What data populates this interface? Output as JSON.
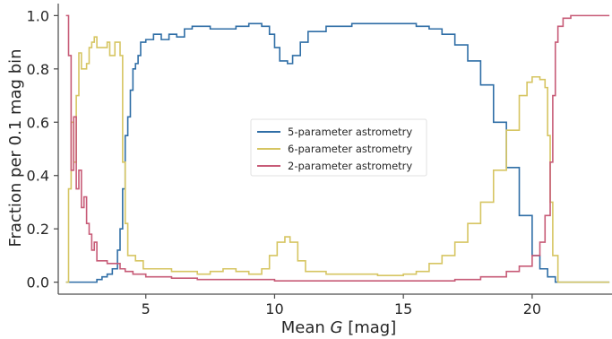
{
  "chart_data": {
    "type": "line",
    "step": true,
    "xlabel_prefix": "Mean ",
    "xlabel_var": "G",
    "xlabel_suffix": " [mag]",
    "ylabel": "Fraction per 0.1 mag bin",
    "xlim": [
      1.6,
      23.1
    ],
    "ylim": [
      -0.045,
      1.045
    ],
    "xticks": [
      5,
      10,
      15,
      20
    ],
    "yticks": [
      0.0,
      0.2,
      0.4,
      0.6,
      0.8,
      1.0
    ],
    "xtick_labels": [
      "5",
      "10",
      "15",
      "20"
    ],
    "ytick_labels": [
      "0.0",
      "0.2",
      "0.4",
      "0.6",
      "0.8",
      "1.0"
    ],
    "grid": false,
    "legend_position": "center",
    "series": [
      {
        "name": "5-parameter astrometry",
        "color": "#2f6ea6",
        "points": [
          [
            1.9,
            0.0
          ],
          [
            2.9,
            0.0
          ],
          [
            3.1,
            0.01
          ],
          [
            3.3,
            0.02
          ],
          [
            3.5,
            0.03
          ],
          [
            3.7,
            0.05
          ],
          [
            3.9,
            0.12
          ],
          [
            4.0,
            0.2
          ],
          [
            4.1,
            0.35
          ],
          [
            4.2,
            0.55
          ],
          [
            4.3,
            0.62
          ],
          [
            4.4,
            0.72
          ],
          [
            4.5,
            0.8
          ],
          [
            4.6,
            0.82
          ],
          [
            4.7,
            0.85
          ],
          [
            4.8,
            0.9
          ],
          [
            5.0,
            0.91
          ],
          [
            5.3,
            0.93
          ],
          [
            5.6,
            0.91
          ],
          [
            5.9,
            0.93
          ],
          [
            6.2,
            0.92
          ],
          [
            6.5,
            0.95
          ],
          [
            6.8,
            0.96
          ],
          [
            7.5,
            0.95
          ],
          [
            8.0,
            0.95
          ],
          [
            8.5,
            0.96
          ],
          [
            9.0,
            0.97
          ],
          [
            9.5,
            0.96
          ],
          [
            9.8,
            0.93
          ],
          [
            10.0,
            0.88
          ],
          [
            10.2,
            0.83
          ],
          [
            10.5,
            0.82
          ],
          [
            10.7,
            0.85
          ],
          [
            11.0,
            0.9
          ],
          [
            11.3,
            0.94
          ],
          [
            12.0,
            0.96
          ],
          [
            13.0,
            0.97
          ],
          [
            14.0,
            0.97
          ],
          [
            15.0,
            0.97
          ],
          [
            15.5,
            0.96
          ],
          [
            16.0,
            0.95
          ],
          [
            16.5,
            0.93
          ],
          [
            17.0,
            0.89
          ],
          [
            17.5,
            0.83
          ],
          [
            18.0,
            0.74
          ],
          [
            18.5,
            0.6
          ],
          [
            19.0,
            0.43
          ],
          [
            19.5,
            0.25
          ],
          [
            20.0,
            0.1
          ],
          [
            20.3,
            0.05
          ],
          [
            20.6,
            0.02
          ],
          [
            20.9,
            0.0
          ],
          [
            23.0,
            0.0
          ]
        ]
      },
      {
        "name": "6-parameter astrometry",
        "color": "#d6c562",
        "points": [
          [
            1.9,
            0.0
          ],
          [
            2.0,
            0.35
          ],
          [
            2.1,
            0.6
          ],
          [
            2.2,
            0.45
          ],
          [
            2.3,
            0.7
          ],
          [
            2.4,
            0.86
          ],
          [
            2.5,
            0.8
          ],
          [
            2.7,
            0.82
          ],
          [
            2.8,
            0.88
          ],
          [
            2.9,
            0.9
          ],
          [
            3.0,
            0.92
          ],
          [
            3.1,
            0.88
          ],
          [
            3.3,
            0.88
          ],
          [
            3.5,
            0.9
          ],
          [
            3.6,
            0.85
          ],
          [
            3.8,
            0.9
          ],
          [
            4.0,
            0.85
          ],
          [
            4.1,
            0.45
          ],
          [
            4.2,
            0.22
          ],
          [
            4.3,
            0.1
          ],
          [
            4.6,
            0.08
          ],
          [
            4.9,
            0.05
          ],
          [
            5.3,
            0.05
          ],
          [
            6.0,
            0.04
          ],
          [
            7.0,
            0.03
          ],
          [
            7.5,
            0.04
          ],
          [
            8.0,
            0.05
          ],
          [
            8.5,
            0.04
          ],
          [
            9.0,
            0.03
          ],
          [
            9.5,
            0.05
          ],
          [
            9.8,
            0.1
          ],
          [
            10.1,
            0.15
          ],
          [
            10.4,
            0.17
          ],
          [
            10.6,
            0.15
          ],
          [
            10.9,
            0.08
          ],
          [
            11.2,
            0.04
          ],
          [
            12.0,
            0.03
          ],
          [
            14.0,
            0.025
          ],
          [
            15.0,
            0.03
          ],
          [
            15.5,
            0.04
          ],
          [
            16.0,
            0.07
          ],
          [
            16.5,
            0.1
          ],
          [
            17.0,
            0.15
          ],
          [
            17.5,
            0.22
          ],
          [
            18.0,
            0.3
          ],
          [
            18.5,
            0.42
          ],
          [
            19.0,
            0.57
          ],
          [
            19.5,
            0.7
          ],
          [
            19.8,
            0.75
          ],
          [
            20.0,
            0.77
          ],
          [
            20.3,
            0.76
          ],
          [
            20.5,
            0.73
          ],
          [
            20.6,
            0.55
          ],
          [
            20.7,
            0.3
          ],
          [
            20.8,
            0.1
          ],
          [
            21.0,
            0.0
          ],
          [
            23.0,
            0.0
          ]
        ]
      },
      {
        "name": "2-parameter astrometry",
        "color": "#c75b77",
        "points": [
          [
            1.9,
            1.0
          ],
          [
            2.0,
            0.85
          ],
          [
            2.1,
            0.42
          ],
          [
            2.2,
            0.62
          ],
          [
            2.3,
            0.35
          ],
          [
            2.4,
            0.42
          ],
          [
            2.5,
            0.28
          ],
          [
            2.6,
            0.32
          ],
          [
            2.7,
            0.22
          ],
          [
            2.8,
            0.18
          ],
          [
            2.9,
            0.12
          ],
          [
            3.0,
            0.15
          ],
          [
            3.1,
            0.08
          ],
          [
            3.3,
            0.08
          ],
          [
            3.5,
            0.07
          ],
          [
            3.7,
            0.07
          ],
          [
            4.0,
            0.05
          ],
          [
            4.2,
            0.04
          ],
          [
            4.5,
            0.03
          ],
          [
            5.0,
            0.02
          ],
          [
            5.5,
            0.02
          ],
          [
            6.0,
            0.015
          ],
          [
            7.0,
            0.01
          ],
          [
            8.0,
            0.01
          ],
          [
            10.0,
            0.005
          ],
          [
            15.0,
            0.005
          ],
          [
            17.0,
            0.01
          ],
          [
            18.0,
            0.02
          ],
          [
            19.0,
            0.04
          ],
          [
            19.5,
            0.06
          ],
          [
            20.0,
            0.1
          ],
          [
            20.3,
            0.15
          ],
          [
            20.5,
            0.25
          ],
          [
            20.7,
            0.45
          ],
          [
            20.8,
            0.7
          ],
          [
            20.9,
            0.9
          ],
          [
            21.0,
            0.96
          ],
          [
            21.2,
            0.99
          ],
          [
            21.5,
            1.0
          ],
          [
            23.0,
            1.0
          ]
        ]
      }
    ]
  }
}
